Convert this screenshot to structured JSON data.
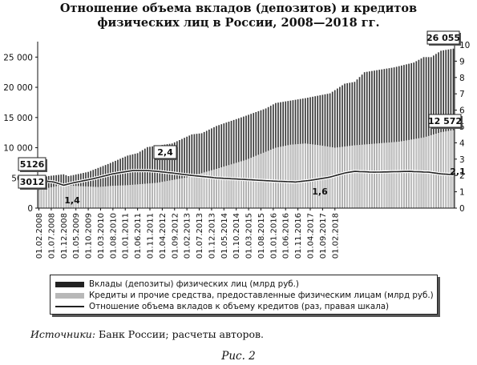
{
  "title_line1": "Отношение объема вкладов (депозитов) и кредитов",
  "title_line2": "физических лиц в России, 2008—2018 гг.",
  "colors": {
    "deposits": "#333333",
    "credits": "#b8b8b8",
    "ratio": "#222222"
  },
  "chart_data": {
    "type": "bar",
    "grid": false,
    "legend_placement": "bottom",
    "x_tick_labels": [
      "01.02.2008",
      "01.07.2008",
      "01.12.2008",
      "01.05.2009",
      "01.10.2009",
      "01.03.2010",
      "01.08.2010",
      "01.01.2011",
      "01.06.2011",
      "01.11.2011",
      "01.04.2012",
      "01.09.2012",
      "01.02.2013",
      "01.07.2013",
      "01.12.2013",
      "01.05.2014",
      "01.10.2014",
      "01.03.2015",
      "01.08.2015",
      "01.01.2016",
      "01.06.2016",
      "01.11.2016",
      "01.04.2017",
      "01.09.2017",
      "01.02.2018"
    ],
    "left_axis": {
      "ticks": [
        "0",
        "5000",
        "10 000",
        "15 000",
        "20 000",
        "25 000"
      ],
      "ylim": [
        0,
        26500
      ]
    },
    "right_axis": {
      "ticks": [
        "0",
        "1",
        "2",
        "3",
        "4",
        "5",
        "6",
        "7",
        "8",
        "9",
        "10"
      ],
      "ylim": [
        0,
        10
      ]
    },
    "series": [
      {
        "name": "Вклады (депозиты) физических лиц (млрд руб.)",
        "type": "bar",
        "axis": "left",
        "keypoints": [
          [
            0,
            5126
          ],
          [
            10,
            5600
          ],
          [
            12,
            5300
          ],
          [
            20,
            6000
          ],
          [
            28,
            7300
          ],
          [
            36,
            8700
          ],
          [
            40,
            9100
          ],
          [
            44,
            10100
          ],
          [
            54,
            10700
          ],
          [
            62,
            12200
          ],
          [
            66,
            12400
          ],
          [
            72,
            13600
          ],
          [
            84,
            15300
          ],
          [
            92,
            16500
          ],
          [
            96,
            17400
          ],
          [
            108,
            18200
          ],
          [
            118,
            19000
          ],
          [
            124,
            20600
          ],
          [
            128,
            20900
          ],
          [
            132,
            22500
          ],
          [
            144,
            23300
          ],
          [
            152,
            24100
          ],
          [
            156,
            25000
          ],
          [
            159,
            25000
          ],
          [
            163,
            26055
          ],
          [
            168,
            26400
          ]
        ]
      },
      {
        "name": "Кредиты и  прочие средства, предоставленные физическим лицам (млрд руб.)",
        "type": "bar",
        "axis": "left",
        "keypoints": [
          [
            0,
            3012
          ],
          [
            10,
            3900
          ],
          [
            14,
            3700
          ],
          [
            24,
            3500
          ],
          [
            30,
            3700
          ],
          [
            36,
            3800
          ],
          [
            48,
            4200
          ],
          [
            60,
            5100
          ],
          [
            72,
            6500
          ],
          [
            84,
            8000
          ],
          [
            90,
            9000
          ],
          [
            96,
            10000
          ],
          [
            102,
            10500
          ],
          [
            108,
            10700
          ],
          [
            114,
            10400
          ],
          [
            120,
            10000
          ],
          [
            128,
            10400
          ],
          [
            134,
            10600
          ],
          [
            146,
            11000
          ],
          [
            156,
            11700
          ],
          [
            163,
            12572
          ],
          [
            168,
            12900
          ]
        ]
      },
      {
        "name": "Отношение объема вкладов к объему кредитов (раз, правая шкала)",
        "type": "line",
        "axis": "right",
        "keypoints": [
          [
            0,
            1.7
          ],
          [
            6,
            1.6
          ],
          [
            10,
            1.4
          ],
          [
            14,
            1.55
          ],
          [
            22,
            1.8
          ],
          [
            30,
            2.1
          ],
          [
            38,
            2.3
          ],
          [
            44,
            2.3
          ],
          [
            48,
            2.25
          ],
          [
            54,
            2.15
          ],
          [
            62,
            2.0
          ],
          [
            72,
            1.85
          ],
          [
            84,
            1.75
          ],
          [
            96,
            1.65
          ],
          [
            104,
            1.6
          ],
          [
            110,
            1.7
          ],
          [
            118,
            1.9
          ],
          [
            124,
            2.15
          ],
          [
            128,
            2.25
          ],
          [
            136,
            2.2
          ],
          [
            150,
            2.25
          ],
          [
            158,
            2.2
          ],
          [
            163,
            2.1
          ],
          [
            168,
            2.05
          ]
        ]
      }
    ],
    "annotations": [
      "5126",
      "3012",
      "1,4",
      "2,4",
      "1,6",
      "2,1",
      "26 055",
      "12 572"
    ]
  },
  "legend": [
    {
      "label": "Вклады (депозиты) физических лиц (млрд руб.)"
    },
    {
      "label": "Кредиты и  прочие средства, предоставленные физическим лицам (млрд руб.)"
    },
    {
      "label": "Отношение объема вкладов к объему кредитов (раз, правая шкала)"
    }
  ],
  "sources_label": "Источники:",
  "sources_text": " Банк России; расчеты авторов.",
  "caption": "Рис. 2"
}
